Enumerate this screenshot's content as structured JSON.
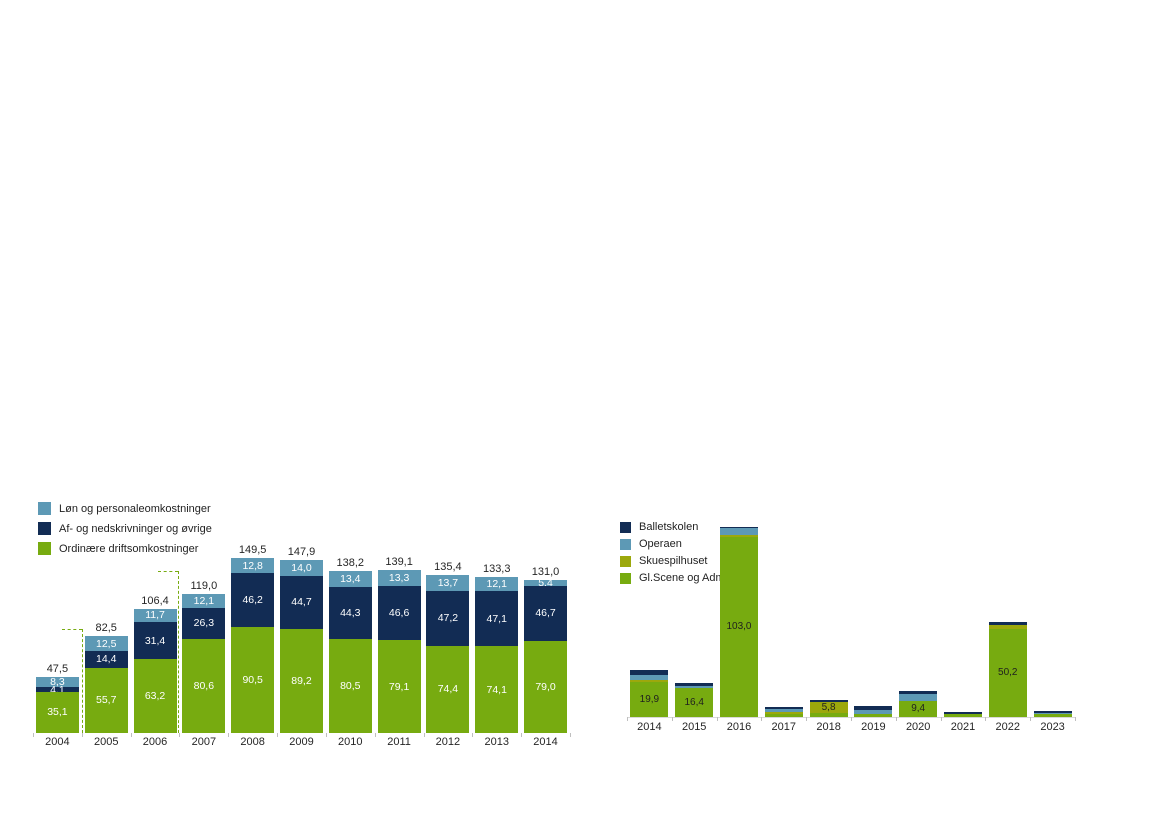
{
  "page": {
    "background": "#FFFFFF"
  },
  "colors": {
    "green": "#77AB10",
    "olive": "#9CA80C",
    "lightblue": "#5D99B5",
    "navy": "#122C54",
    "label_dark": "#262626",
    "tick_gray": "#BFBFBF"
  },
  "chart_data": [
    {
      "type": "bar",
      "stacked": true,
      "title": "",
      "xlabel": "",
      "ylabel": "",
      "grid": false,
      "legend_position": "top-left",
      "ylim": [
        0,
        160
      ],
      "categories": [
        "2004",
        "2005",
        "2006",
        "2007",
        "2008",
        "2009",
        "2010",
        "2011",
        "2012",
        "2013",
        "2014"
      ],
      "series": [
        {
          "name": "Ordinære driftsomkostninger",
          "color": "#77AB10",
          "values": [
            35.1,
            55.7,
            63.2,
            80.6,
            90.5,
            89.2,
            80.5,
            79.1,
            74.4,
            74.1,
            79.0
          ],
          "labels": [
            "35,1",
            "55,7",
            "63,2",
            "80,6",
            "90,5",
            "89,2",
            "80,5",
            "79,1",
            "74,4",
            "74,1",
            "79,0"
          ]
        },
        {
          "name": "Af- og nedskrivninger og øvrige",
          "color": "#122C54",
          "values": [
            4.1,
            14.4,
            31.4,
            26.3,
            46.2,
            44.7,
            44.3,
            46.6,
            47.2,
            47.1,
            46.7
          ],
          "labels": [
            "4,1",
            "14,4",
            "31,4",
            "26,3",
            "46,2",
            "44,7",
            "44,3",
            "46,6",
            "47,2",
            "47,1",
            "46,7"
          ]
        },
        {
          "name": "Løn og personaleomkostninger",
          "color": "#5D99B5",
          "values": [
            8.3,
            12.5,
            11.7,
            12.1,
            12.8,
            14.0,
            13.4,
            13.3,
            13.7,
            12.1,
            5.4
          ],
          "labels": [
            "8,3",
            "12,5",
            "11,7",
            "12,1",
            "12,8",
            "14,0",
            "13,4",
            "13,3",
            "13,7",
            "12,1",
            "5,4"
          ]
        }
      ],
      "totals": [
        "47,5",
        "82,5",
        "106,4",
        "119,0",
        "149,5",
        "147,9",
        "138,2",
        "139,1",
        "135,4",
        "133,3",
        "131,0"
      ],
      "legend": [
        {
          "label": "Løn og personaleomkostninger",
          "color": "#5D99B5"
        },
        {
          "label": "Af- og nedskrivninger og øvrige",
          "color": "#122C54"
        },
        {
          "label": "Ordinære driftsomkostninger",
          "color": "#77AB10"
        }
      ],
      "annotations": [
        {
          "type": "dashed-step-line",
          "color": "#77AB10",
          "between": "2004|2005"
        },
        {
          "type": "dashed-step-line",
          "color": "#77AB10",
          "between": "2006|2007"
        }
      ]
    },
    {
      "type": "bar",
      "stacked": true,
      "title": "",
      "xlabel": "",
      "ylabel": "",
      "grid": false,
      "legend_position": "top-left",
      "ylim": [
        0,
        112
      ],
      "categories": [
        "2014",
        "2015",
        "2016",
        "2017",
        "2018",
        "2019",
        "2020",
        "2021",
        "2022",
        "2023"
      ],
      "series": [
        {
          "name": "Gl.Scene og Adm.",
          "color": "#77AB10",
          "values": [
            19.9,
            16.4,
            103.0,
            2.0,
            2.5,
            2.0,
            9.4,
            1.7,
            50.2,
            1.5
          ],
          "labels": [
            "19,9",
            "16,4",
            "103,0",
            "",
            "",
            "",
            "9,4",
            "",
            "50,2",
            ""
          ]
        },
        {
          "name": "Skuespilhuset",
          "color": "#9CA80C",
          "values": [
            1.5,
            0,
            1.0,
            1.0,
            5.8,
            0,
            0,
            0,
            2.5,
            0
          ],
          "labels": [
            "",
            "",
            "",
            "",
            "5,8",
            "",
            "",
            "",
            "",
            ""
          ]
        },
        {
          "name": "Operaen",
          "color": "#5D99B5",
          "values": [
            2.5,
            1.2,
            4.0,
            1.3,
            0,
            2.0,
            4.0,
            0,
            0,
            0.8
          ],
          "labels": [
            "",
            "",
            "",
            "",
            "",
            "",
            "",
            "",
            "",
            ""
          ]
        },
        {
          "name": "Balletskolen",
          "color": "#122C54",
          "values": [
            3.0,
            1.8,
            0.5,
            1.7,
            1.2,
            2.2,
            1.5,
            1.0,
            1.5,
            1.0
          ],
          "labels": [
            "",
            "",
            "",
            "",
            "",
            "",
            "",
            "",
            "",
            ""
          ]
        }
      ],
      "legend": [
        {
          "label": "Balletskolen",
          "color": "#122C54"
        },
        {
          "label": "Operaen",
          "color": "#5D99B5"
        },
        {
          "label": "Skuespilhuset",
          "color": "#9CA80C"
        },
        {
          "label": "Gl.Scene og Adm.",
          "color": "#77AB10"
        }
      ]
    }
  ]
}
